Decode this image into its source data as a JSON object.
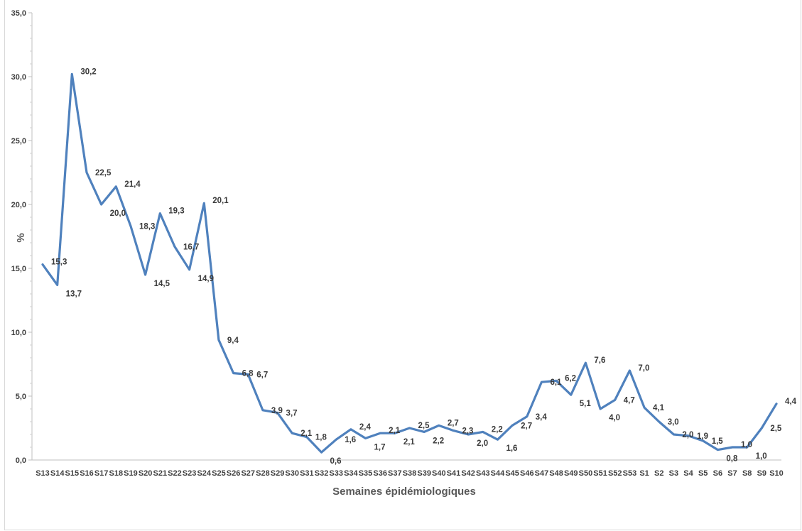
{
  "chart_data": {
    "type": "line",
    "xlabel": "Semaines épidémiologiques",
    "ylabel": "%",
    "ylim": [
      0,
      35
    ],
    "yticks": [
      "0,0",
      "5,0",
      "10,0",
      "15,0",
      "20,0",
      "25,0",
      "30,0",
      "35,0"
    ],
    "grid": false,
    "legend": "none",
    "line_color": "#4f81bd",
    "categories": [
      "S13",
      "S14",
      "S15",
      "S16",
      "S17",
      "S18",
      "S19",
      "S20",
      "S21",
      "S22",
      "S23",
      "S24",
      "S25",
      "S26",
      "S27",
      "S28",
      "S29",
      "S30",
      "S31",
      "S32",
      "S33",
      "S34",
      "S35",
      "S36",
      "S37",
      "S38",
      "S39",
      "S40",
      "S41",
      "S42",
      "S43",
      "S44",
      "S45",
      "S46",
      "S47",
      "S48",
      "S49",
      "S50",
      "S51",
      "S52",
      "S53",
      "S1",
      "S2",
      "S3",
      "S4",
      "S5",
      "S6",
      "S7",
      "S8",
      "S9",
      "S10"
    ],
    "series": [
      {
        "values": [
          15.3,
          13.7,
          30.2,
          22.5,
          20.0,
          21.4,
          18.3,
          14.5,
          19.3,
          16.7,
          14.9,
          20.1,
          9.4,
          6.8,
          6.7,
          3.9,
          3.7,
          2.1,
          1.8,
          0.6,
          1.6,
          2.4,
          1.7,
          2.1,
          2.1,
          2.5,
          2.2,
          2.7,
          2.3,
          2.0,
          2.2,
          1.6,
          2.7,
          3.4,
          6.1,
          6.2,
          5.1,
          7.6,
          4.0,
          4.7,
          7.0,
          4.1,
          3.0,
          2.0,
          1.9,
          1.5,
          0.8,
          1.0,
          1.0,
          2.5,
          4.4
        ],
        "labels": [
          "15,3",
          "13,7",
          "30,2",
          "22,5",
          "20,0",
          "21,4",
          "18,3",
          "14,5",
          "19,3",
          "16,7",
          "14,9",
          "20,1",
          "9,4",
          "6,8",
          "6,7",
          "3,9",
          "3,7",
          "2,1",
          "1,8",
          "0,6",
          "1,6",
          "2,4",
          "1,7",
          "2,1",
          "2,1",
          "2,5",
          "2,2",
          "2,7",
          "2,3",
          "2,0",
          "2,2",
          "1,6",
          "2,7",
          "3,4",
          "6,1",
          "6,2",
          "5,1",
          "7,6",
          "4,0",
          "4,7",
          "7,0",
          "4,1",
          "3,0",
          "2,0",
          "1,9",
          "1,5",
          "0,8",
          "1,0",
          "1,0",
          "2,5",
          "4,4"
        ]
      }
    ]
  }
}
